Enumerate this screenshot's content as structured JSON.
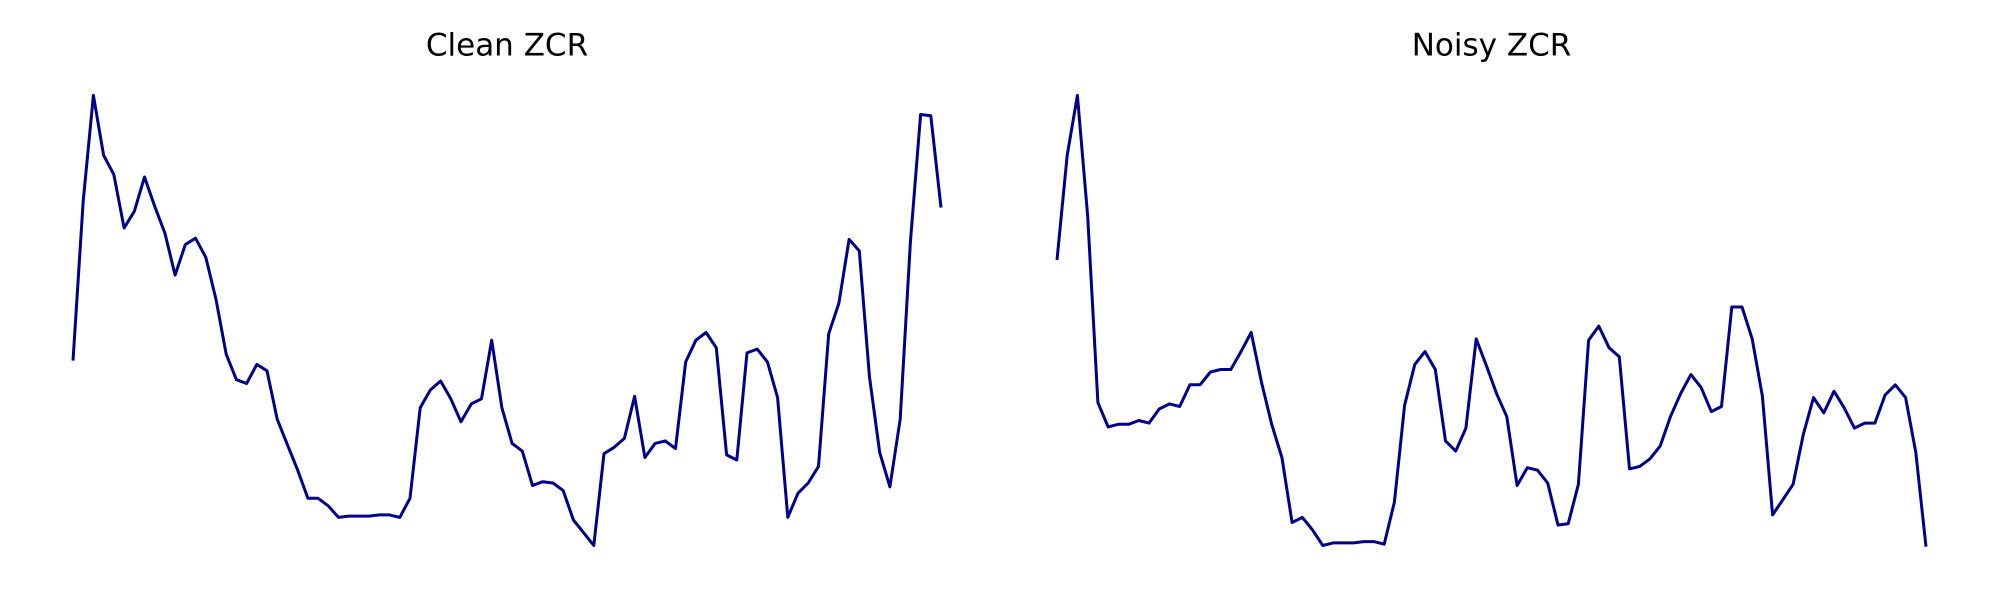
{
  "chart_data": [
    {
      "type": "line",
      "title": "Clean ZCR",
      "color": "#00008b",
      "ylim": [
        0,
        360
      ],
      "values": [
        147,
        272,
        355,
        308,
        293,
        251,
        264,
        291,
        268,
        247,
        214,
        238,
        243,
        228,
        195,
        152,
        132,
        129,
        144,
        139,
        101,
        81,
        61,
        39,
        39,
        33,
        24,
        25,
        25,
        25,
        26,
        26,
        24,
        39,
        110,
        124,
        131,
        117,
        99,
        113,
        117,
        163,
        110,
        82,
        76,
        49,
        52,
        51,
        45,
        22,
        12,
        2,
        74,
        79,
        86,
        119,
        71,
        82,
        84,
        78,
        146,
        163,
        169,
        157,
        73,
        69,
        153,
        156,
        146,
        118,
        24,
        43,
        51,
        64,
        168,
        192,
        242,
        233,
        134,
        75,
        48,
        101,
        240,
        340,
        339,
        267
      ]
    },
    {
      "type": "line",
      "title": "Noisy ZCR",
      "color": "#00008b",
      "ylim": [
        0,
        360
      ],
      "values": [
        226,
        308,
        355,
        260,
        114,
        95,
        97,
        97,
        100,
        98,
        109,
        113,
        111,
        128,
        128,
        138,
        140,
        140,
        154,
        169,
        130,
        97,
        71,
        20,
        24,
        14,
        2,
        4,
        4,
        4,
        5,
        5,
        3,
        36,
        112,
        144,
        154,
        140,
        84,
        76,
        94,
        164,
        143,
        121,
        103,
        49,
        63,
        61,
        51,
        18,
        19,
        50,
        163,
        174,
        157,
        150,
        62,
        64,
        70,
        80,
        103,
        121,
        136,
        126,
        107,
        111,
        189,
        189,
        164,
        119,
        26,
        38,
        50,
        89,
        118,
        106,
        123,
        110,
        94,
        98,
        98,
        120,
        128,
        118,
        75,
        1
      ]
    }
  ]
}
